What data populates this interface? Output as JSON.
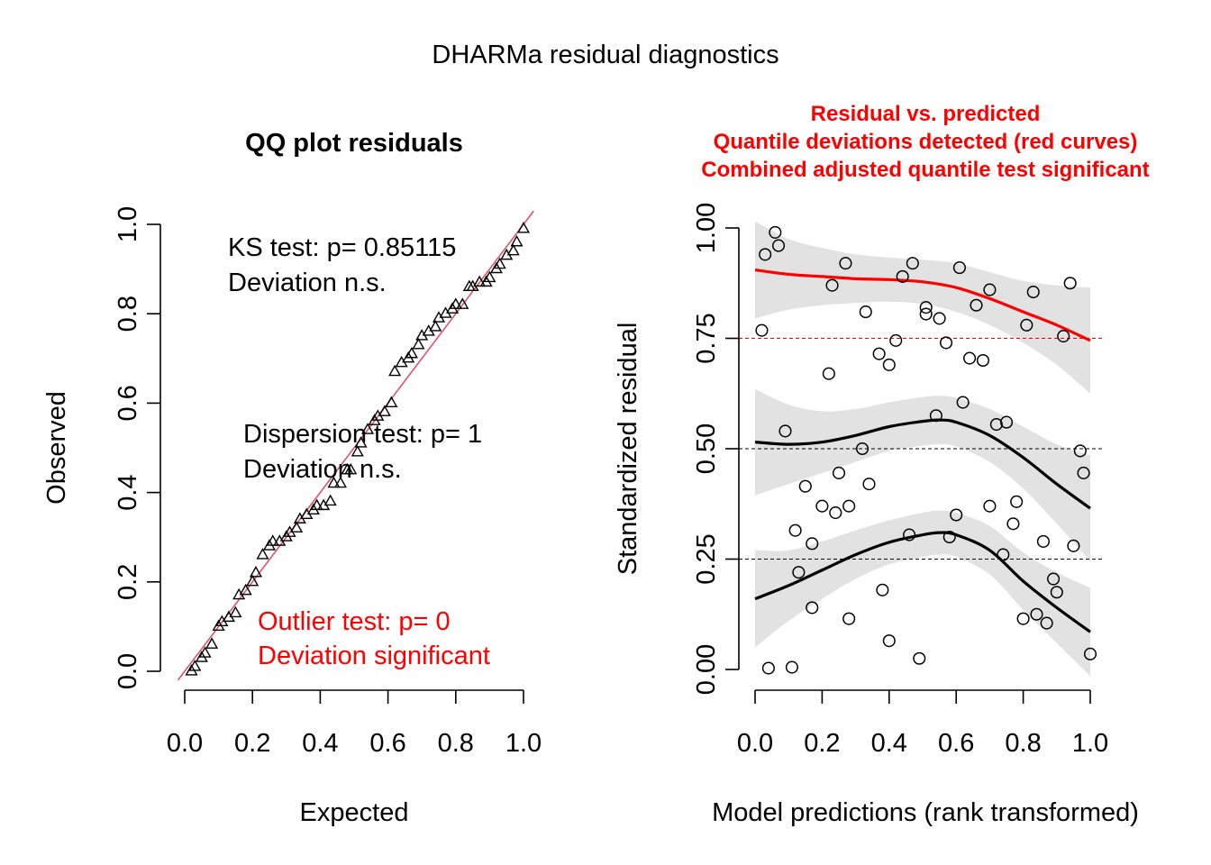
{
  "suptitle": "DHARMa residual diagnostics",
  "colors": {
    "red": "#FF0000",
    "qqline": "#DF536B",
    "band": "#E2E2E2",
    "black": "#000000"
  },
  "chart_data": [
    {
      "type": "scatter",
      "title": "QQ plot residuals",
      "xlabel": "Expected",
      "ylabel": "Observed",
      "xlim": [
        0,
        1
      ],
      "ylim": [
        0,
        1
      ],
      "xticks": [
        "0.0",
        "0.2",
        "0.4",
        "0.6",
        "0.8",
        "1.0"
      ],
      "yticks": [
        "0.0",
        "0.2",
        "0.4",
        "0.6",
        "0.8",
        "1.0"
      ],
      "grid": false,
      "marker": "triangle-open",
      "reference_line": {
        "from": [
          0,
          0
        ],
        "to": [
          1,
          1
        ],
        "color": "#DF536B"
      },
      "annotations": {
        "ks": [
          "KS test: p= 0.85115",
          "Deviation  n.s."
        ],
        "dispersion": [
          "Dispersion test: p= 1",
          "Deviation  n.s."
        ],
        "outlier": [
          "Outlier test: p= 0",
          "Deviation  significant"
        ]
      },
      "points": [
        [
          0.02,
          0.0
        ],
        [
          0.03,
          0.01
        ],
        [
          0.05,
          0.03
        ],
        [
          0.06,
          0.04
        ],
        [
          0.08,
          0.06
        ],
        [
          0.1,
          0.1
        ],
        [
          0.11,
          0.11
        ],
        [
          0.13,
          0.12
        ],
        [
          0.15,
          0.13
        ],
        [
          0.16,
          0.17
        ],
        [
          0.18,
          0.18
        ],
        [
          0.2,
          0.2
        ],
        [
          0.21,
          0.22
        ],
        [
          0.23,
          0.26
        ],
        [
          0.25,
          0.28
        ],
        [
          0.26,
          0.29
        ],
        [
          0.28,
          0.29
        ],
        [
          0.3,
          0.3
        ],
        [
          0.31,
          0.31
        ],
        [
          0.33,
          0.32
        ],
        [
          0.34,
          0.34
        ],
        [
          0.36,
          0.35
        ],
        [
          0.38,
          0.36
        ],
        [
          0.39,
          0.37
        ],
        [
          0.41,
          0.37
        ],
        [
          0.43,
          0.38
        ],
        [
          0.44,
          0.42
        ],
        [
          0.46,
          0.42
        ],
        [
          0.48,
          0.45
        ],
        [
          0.49,
          0.45
        ],
        [
          0.51,
          0.49
        ],
        [
          0.52,
          0.51
        ],
        [
          0.54,
          0.54
        ],
        [
          0.56,
          0.56
        ],
        [
          0.57,
          0.57
        ],
        [
          0.59,
          0.58
        ],
        [
          0.61,
          0.6
        ],
        [
          0.62,
          0.67
        ],
        [
          0.64,
          0.69
        ],
        [
          0.66,
          0.7
        ],
        [
          0.67,
          0.71
        ],
        [
          0.69,
          0.73
        ],
        [
          0.7,
          0.75
        ],
        [
          0.72,
          0.76
        ],
        [
          0.74,
          0.77
        ],
        [
          0.75,
          0.79
        ],
        [
          0.77,
          0.8
        ],
        [
          0.79,
          0.81
        ],
        [
          0.8,
          0.82
        ],
        [
          0.82,
          0.82
        ],
        [
          0.84,
          0.86
        ],
        [
          0.85,
          0.86
        ],
        [
          0.87,
          0.87
        ],
        [
          0.89,
          0.87
        ],
        [
          0.9,
          0.88
        ],
        [
          0.92,
          0.9
        ],
        [
          0.93,
          0.91
        ],
        [
          0.95,
          0.93
        ],
        [
          0.97,
          0.94
        ],
        [
          0.98,
          0.96
        ],
        [
          1.0,
          0.99
        ]
      ]
    },
    {
      "type": "scatter",
      "title": [
        "Residual vs. predicted",
        "Quantile deviations detected (red curves)",
        "Combined adjusted quantile test significant"
      ],
      "xlabel": "Model predictions (rank transformed)",
      "ylabel": "Standardized residual",
      "xlim": [
        0,
        1
      ],
      "ylim": [
        0,
        1
      ],
      "xticks": [
        "0.0",
        "0.2",
        "0.4",
        "0.6",
        "0.8",
        "1.0"
      ],
      "yticks": [
        "0.00",
        "0.25",
        "0.50",
        "0.75",
        "1.00"
      ],
      "grid": false,
      "marker": "circle-open",
      "reference_lines": [
        0.25,
        0.5,
        0.75
      ],
      "quantile_curves": [
        {
          "quantile": 0.25,
          "color": "#000000",
          "x": [
            0,
            0.1,
            0.2,
            0.3,
            0.4,
            0.5,
            0.55,
            0.6,
            0.7,
            0.8,
            0.9,
            1.0
          ],
          "y": [
            0.16,
            0.19,
            0.225,
            0.26,
            0.288,
            0.305,
            0.31,
            0.305,
            0.27,
            0.2,
            0.14,
            0.085
          ],
          "band_half": [
            0.11,
            0.08,
            0.065,
            0.055,
            0.05,
            0.05,
            0.05,
            0.05,
            0.055,
            0.065,
            0.08,
            0.1
          ]
        },
        {
          "quantile": 0.5,
          "color": "#000000",
          "x": [
            0,
            0.1,
            0.2,
            0.3,
            0.4,
            0.5,
            0.55,
            0.6,
            0.7,
            0.8,
            0.9,
            1.0
          ],
          "y": [
            0.515,
            0.51,
            0.515,
            0.53,
            0.55,
            0.562,
            0.565,
            0.56,
            0.53,
            0.48,
            0.42,
            0.365
          ],
          "band_half": [
            0.12,
            0.09,
            0.07,
            0.06,
            0.055,
            0.055,
            0.055,
            0.055,
            0.06,
            0.07,
            0.09,
            0.12
          ]
        },
        {
          "quantile": 0.75,
          "color": "#FF0000",
          "x": [
            0,
            0.1,
            0.2,
            0.3,
            0.4,
            0.5,
            0.6,
            0.7,
            0.8,
            0.9,
            1.0
          ],
          "y": [
            0.905,
            0.895,
            0.89,
            0.885,
            0.883,
            0.878,
            0.865,
            0.84,
            0.81,
            0.78,
            0.745
          ],
          "band_half": [
            0.11,
            0.08,
            0.065,
            0.055,
            0.05,
            0.05,
            0.055,
            0.06,
            0.07,
            0.09,
            0.12
          ]
        }
      ],
      "points": [
        [
          0.02,
          0.768
        ],
        [
          0.03,
          0.94
        ],
        [
          0.06,
          0.99
        ],
        [
          0.07,
          0.96
        ],
        [
          0.09,
          0.54
        ],
        [
          0.04,
          0.003
        ],
        [
          0.11,
          0.005
        ],
        [
          0.12,
          0.315
        ],
        [
          0.13,
          0.22
        ],
        [
          0.15,
          0.415
        ],
        [
          0.17,
          0.285
        ],
        [
          0.17,
          0.14
        ],
        [
          0.2,
          0.37
        ],
        [
          0.22,
          0.67
        ],
        [
          0.23,
          0.87
        ],
        [
          0.24,
          0.355
        ],
        [
          0.25,
          0.445
        ],
        [
          0.27,
          0.92
        ],
        [
          0.28,
          0.37
        ],
        [
          0.28,
          0.115
        ],
        [
          0.32,
          0.5
        ],
        [
          0.33,
          0.81
        ],
        [
          0.34,
          0.42
        ],
        [
          0.37,
          0.715
        ],
        [
          0.38,
          0.18
        ],
        [
          0.4,
          0.065
        ],
        [
          0.4,
          0.69
        ],
        [
          0.42,
          0.745
        ],
        [
          0.44,
          0.89
        ],
        [
          0.46,
          0.305
        ],
        [
          0.47,
          0.92
        ],
        [
          0.49,
          0.025
        ],
        [
          0.51,
          0.82
        ],
        [
          0.51,
          0.805
        ],
        [
          0.54,
          0.575
        ],
        [
          0.55,
          0.795
        ],
        [
          0.57,
          0.74
        ],
        [
          0.58,
          0.3
        ],
        [
          0.6,
          0.35
        ],
        [
          0.61,
          0.91
        ],
        [
          0.62,
          0.605
        ],
        [
          0.64,
          0.705
        ],
        [
          0.66,
          0.825
        ],
        [
          0.68,
          0.7
        ],
        [
          0.7,
          0.86
        ],
        [
          0.7,
          0.37
        ],
        [
          0.72,
          0.555
        ],
        [
          0.74,
          0.26
        ],
        [
          0.75,
          0.56
        ],
        [
          0.77,
          0.33
        ],
        [
          0.78,
          0.38
        ],
        [
          0.8,
          0.115
        ],
        [
          0.81,
          0.78
        ],
        [
          0.83,
          0.855
        ],
        [
          0.84,
          0.125
        ],
        [
          0.86,
          0.29
        ],
        [
          0.87,
          0.105
        ],
        [
          0.89,
          0.205
        ],
        [
          0.9,
          0.175
        ],
        [
          0.92,
          0.755
        ],
        [
          0.94,
          0.875
        ],
        [
          0.95,
          0.28
        ],
        [
          0.97,
          0.495
        ],
        [
          0.98,
          0.445
        ],
        [
          1.0,
          0.035
        ]
      ]
    }
  ]
}
